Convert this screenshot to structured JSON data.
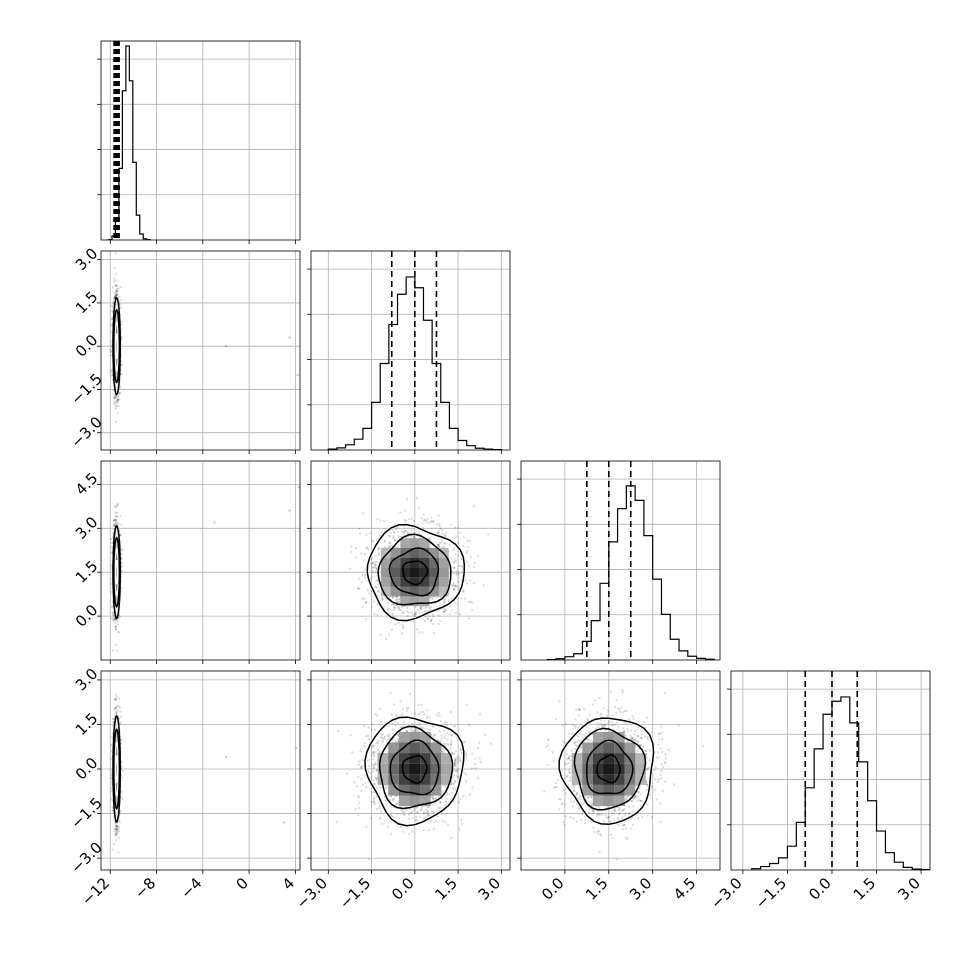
{
  "chart_data": {
    "type": "corner",
    "grid": true,
    "parameters": [
      {
        "range": [
          -12.8,
          4.4
        ],
        "ticks": [
          -12,
          -8,
          -4,
          0,
          4
        ],
        "tick_labels": [
          "−12",
          "−8",
          "−4",
          "0",
          "4"
        ],
        "quantiles": [
          -11.52,
          -11.45,
          -11.38
        ],
        "hist": {
          "edges_start": -12.15,
          "bin_width": 0.3,
          "counts": [
            3,
            40,
            200,
            720,
            1500,
            1950,
            1600,
            780,
            250,
            60,
            12,
            3
          ]
        },
        "hist_ymax": 2000
      },
      {
        "range": [
          -3.6,
          3.3
        ],
        "ticks": [
          -3.0,
          -1.5,
          0.0,
          1.5,
          3.0
        ],
        "tick_labels": [
          "−3.0",
          "−1.5",
          "0.0",
          "1.5",
          "3.0"
        ],
        "quantiles": [
          -0.8,
          0.0,
          0.75
        ],
        "mean": 0.0,
        "sd": 0.8,
        "hist": {
          "edges_start": -3.0,
          "bin_width": 0.3,
          "counts": [
            2,
            5,
            12,
            25,
            50,
            110,
            200,
            290,
            360,
            400,
            375,
            300,
            200,
            110,
            50,
            22,
            10,
            4,
            2,
            1
          ]
        },
        "hist_ymax": 460
      },
      {
        "range": [
          -1.5,
          5.3
        ],
        "ticks": [
          0.0,
          1.5,
          3.0,
          4.5
        ],
        "tick_labels": [
          "0.0",
          "1.5",
          "3.0",
          "4.5"
        ],
        "quantiles": [
          0.75,
          1.5,
          2.25
        ],
        "mean": 1.5,
        "sd": 0.75,
        "hist": {
          "edges_start": -0.6,
          "bin_width": 0.3,
          "counts": [
            1,
            3,
            8,
            15,
            45,
            95,
            185,
            285,
            365,
            420,
            385,
            300,
            195,
            110,
            50,
            22,
            9,
            4,
            2
          ]
        },
        "hist_ymax": 480
      },
      {
        "range": [
          -3.4,
          3.3
        ],
        "ticks": [
          -3.0,
          -1.5,
          0.0,
          1.5,
          3.0
        ],
        "tick_labels": [
          "−3.0",
          "−1.5",
          "0.0",
          "1.5",
          "3.0"
        ],
        "quantiles": [
          -0.9,
          0.0,
          0.85
        ],
        "mean": 0.0,
        "sd": 0.85,
        "hist": {
          "edges_start": -2.7,
          "bin_width": 0.3,
          "counts": [
            3,
            8,
            15,
            28,
            55,
            110,
            190,
            280,
            360,
            390,
            400,
            340,
            250,
            160,
            90,
            40,
            18,
            6,
            2,
            1
          ]
        },
        "hist_ymax": 460
      }
    ],
    "pairs": [
      {
        "row": 1,
        "col": 0,
        "center": [
          -11.45,
          0.0
        ],
        "widths": [
          0.15,
          0.8
        ],
        "outliers": [
          [
            -2,
            0.0
          ],
          [
            3.5,
            0.3
          ],
          [
            4.2,
            -1.0
          ]
        ]
      },
      {
        "row": 2,
        "col": 0,
        "center": [
          -11.45,
          1.5
        ],
        "widths": [
          0.15,
          0.75
        ],
        "outliers": [
          [
            -3,
            3.2
          ],
          [
            3.5,
            3.6
          ],
          [
            4.3,
            4.4
          ]
        ]
      },
      {
        "row": 2,
        "col": 1,
        "center": [
          0.0,
          1.5
        ],
        "widths": [
          0.8,
          0.75
        ]
      },
      {
        "row": 3,
        "col": 0,
        "center": [
          -11.45,
          0.0
        ],
        "widths": [
          0.15,
          0.85
        ],
        "outliers": [
          [
            -2,
            0.4
          ],
          [
            3.0,
            -1.8
          ],
          [
            4.1,
            0.7
          ]
        ]
      },
      {
        "row": 3,
        "col": 1,
        "center": [
          0.0,
          0.0
        ],
        "widths": [
          0.8,
          0.85
        ]
      },
      {
        "row": 3,
        "col": 2,
        "center": [
          1.5,
          0.0
        ],
        "widths": [
          0.75,
          0.85
        ]
      }
    ]
  }
}
